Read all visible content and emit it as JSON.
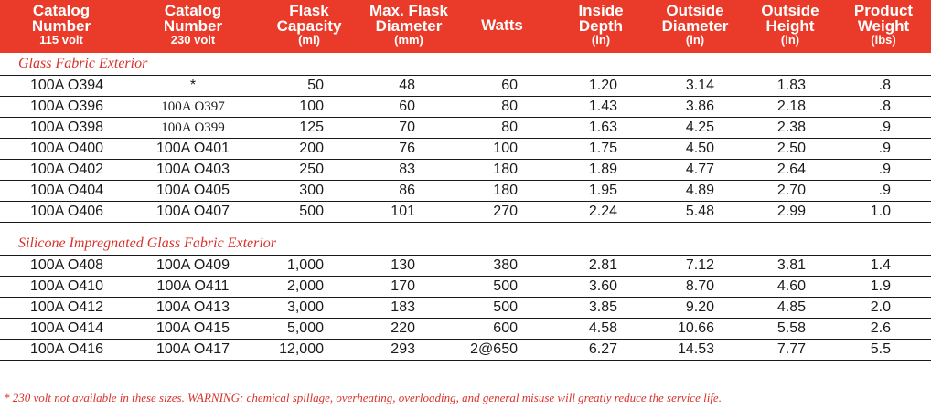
{
  "header": {
    "columns": [
      {
        "lines": [
          "Catalog",
          "Number"
        ],
        "unit": "115 volt"
      },
      {
        "lines": [
          "Catalog",
          "Number"
        ],
        "unit": "230 volt"
      },
      {
        "lines": [
          "Flask",
          "Capacity"
        ],
        "unit": "(ml)"
      },
      {
        "lines": [
          "Max. Flask",
          "Diameter"
        ],
        "unit": "(mm)"
      },
      {
        "lines": [
          "Watts"
        ],
        "unit": ""
      },
      {
        "lines": [
          "Inside",
          "Depth"
        ],
        "unit": "(in)"
      },
      {
        "lines": [
          "Outside",
          "Diameter"
        ],
        "unit": "(in)"
      },
      {
        "lines": [
          "Outside",
          "Height"
        ],
        "unit": "(in)"
      },
      {
        "lines": [
          "Product",
          "Weight"
        ],
        "unit": "(lbs)"
      }
    ]
  },
  "sections": [
    {
      "title": "Glass Fabric Exterior",
      "rows": [
        [
          "100A O394",
          "*",
          "50",
          "48",
          "60",
          "1.20",
          "3.14",
          "1.83",
          ".8"
        ],
        [
          "100A O396",
          "100A O397",
          "100",
          "60",
          "80",
          "1.43",
          "3.86",
          "2.18",
          ".8"
        ],
        [
          "100A O398",
          "100A O399",
          "125",
          "70",
          "80",
          "1.63",
          "4.25",
          "2.38",
          ".9"
        ],
        [
          "100A O400",
          "100A O401",
          "200",
          "76",
          "100",
          "1.75",
          "4.50",
          "2.50",
          ".9"
        ],
        [
          "100A O402",
          "100A O403",
          "250",
          "83",
          "180",
          "1.89",
          "4.77",
          "2.64",
          ".9"
        ],
        [
          "100A O404",
          "100A O405",
          "300",
          "86",
          "180",
          "1.95",
          "4.89",
          "2.70",
          ".9"
        ],
        [
          "100A O406",
          "100A O407",
          "500",
          "101",
          "270",
          "2.24",
          "5.48",
          "2.99",
          "1.0"
        ]
      ]
    },
    {
      "title": "Silicone Impregnated Glass Fabric Exterior",
      "rows": [
        [
          "100A O408",
          "100A O409",
          "1,000",
          "130",
          "380",
          "2.81",
          "7.12",
          "3.81",
          "1.4"
        ],
        [
          "100A O410",
          "100A O411",
          "2,000",
          "170",
          "500",
          "3.60",
          "8.70",
          "4.60",
          "1.9"
        ],
        [
          "100A O412",
          "100A O413",
          "3,000",
          "183",
          "500",
          "3.85",
          "9.20",
          "4.85",
          "2.0"
        ],
        [
          "100A O414",
          "100A O415",
          "5,000",
          "220",
          "600",
          "4.58",
          "10.66",
          "5.58",
          "2.6"
        ],
        [
          "100A O416",
          "100A O417",
          "12,000",
          "293",
          "2@650",
          "6.27",
          "14.53",
          "7.77",
          "5.5"
        ]
      ]
    }
  ],
  "footer": "* 230 volt not available in these sizes.  WARNING: chemical spillage, overheating, overloading, and general misuse will greatly reduce the service life.",
  "colors": {
    "header_bg": "#ea3b2a",
    "section_title": "#d8322a",
    "text": "#1a1a1a"
  }
}
